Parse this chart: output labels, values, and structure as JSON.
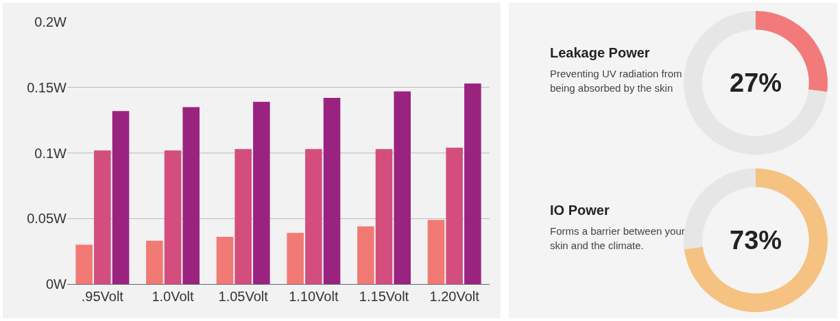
{
  "chart_data": [
    {
      "type": "bar",
      "categories": [
        ".95Volt",
        "1.0Volt",
        "1.05Volt",
        "1.10Volt",
        "1.15Volt",
        "1.20Volt"
      ],
      "series": [
        {
          "color": "#f27a74",
          "values": [
            0.03,
            0.033,
            0.036,
            0.039,
            0.044,
            0.049
          ]
        },
        {
          "color": "#d44e7d",
          "values": [
            0.102,
            0.102,
            0.103,
            0.103,
            0.103,
            0.104
          ]
        },
        {
          "color": "#9b2380",
          "values": [
            0.132,
            0.135,
            0.139,
            0.142,
            0.147,
            0.153
          ]
        }
      ],
      "ylim": [
        0,
        0.2
      ],
      "yticks": [
        {
          "value": 0,
          "label": "0W"
        },
        {
          "value": 0.05,
          "label": "0.05W"
        },
        {
          "value": 0.1,
          "label": "0.1W"
        },
        {
          "value": 0.15,
          "label": "0.15W"
        },
        {
          "value": 0.2,
          "label": "0.2W"
        }
      ],
      "grid": "y",
      "legend": false
    },
    {
      "type": "donut",
      "title": "Leakage Power",
      "subtitle": "Preventing UV radiation from being absorbed by the skin",
      "categories": [
        null,
        null
      ],
      "values": [
        27,
        73
      ],
      "colors": [
        "#f27a7a",
        "#e6e6e6"
      ],
      "annotations": [
        "27%"
      ],
      "legend": false
    },
    {
      "type": "donut",
      "title": "IO Power",
      "subtitle": "Forms a barrier between your skin and the climate.",
      "categories": [
        null,
        null
      ],
      "values": [
        73,
        27
      ],
      "colors": [
        "#f5c282",
        "#e6e6e6"
      ],
      "annotations": [
        "73%"
      ],
      "legend": false
    }
  ]
}
